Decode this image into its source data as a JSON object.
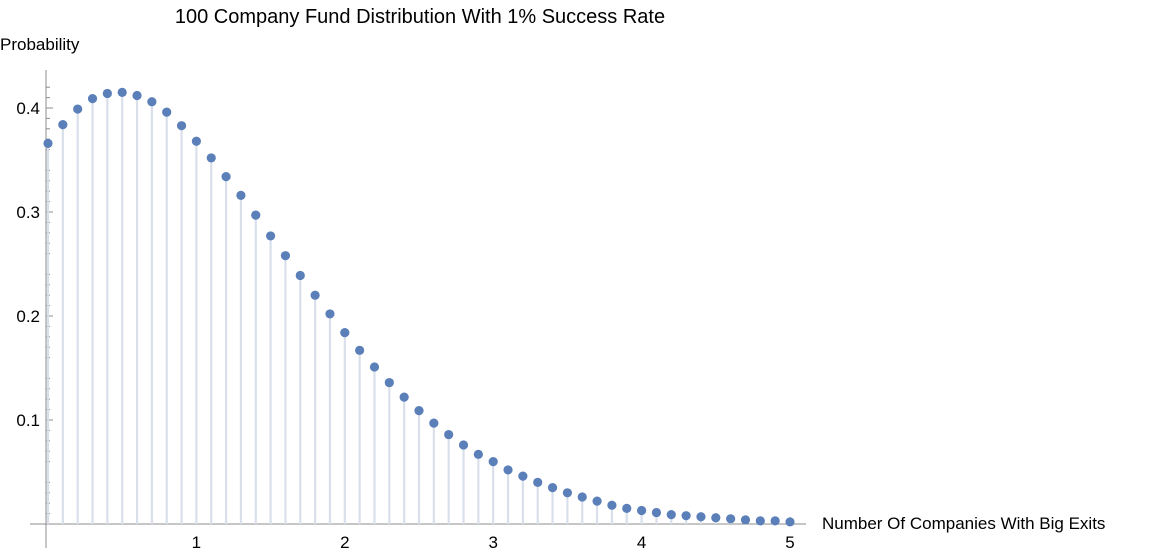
{
  "chart_data": {
    "type": "scatter",
    "title": "100 Company Fund Distribution With 1% Success Rate",
    "xlabel": "Number Of Companies With Big Exits",
    "ylabel": "Probability",
    "xlim": [
      0,
      5
    ],
    "ylim": [
      0,
      0.43
    ],
    "x_ticks": [
      "1",
      "2",
      "3",
      "4",
      "5"
    ],
    "y_ticks": [
      "0.1",
      "0.2",
      "0.3",
      "0.4"
    ],
    "grid": false,
    "series_color": "#5b7fb9",
    "stem_color": "#d9e0eb",
    "x": [
      0.0,
      0.1,
      0.2,
      0.3,
      0.4,
      0.5,
      0.6,
      0.7,
      0.8,
      0.9,
      1.0,
      1.1,
      1.2,
      1.3,
      1.4,
      1.5,
      1.6,
      1.7,
      1.8,
      1.9,
      2.0,
      2.1,
      2.2,
      2.3,
      2.4,
      2.5,
      2.6,
      2.7,
      2.8,
      2.9,
      3.0,
      3.1,
      3.2,
      3.3,
      3.4,
      3.5,
      3.6,
      3.7,
      3.8,
      3.9,
      4.0,
      4.1,
      4.2,
      4.3,
      4.4,
      4.5,
      4.6,
      4.7,
      4.8,
      4.9,
      5.0
    ],
    "y": [
      0.366,
      0.384,
      0.399,
      0.409,
      0.414,
      0.415,
      0.412,
      0.406,
      0.396,
      0.383,
      0.368,
      0.352,
      0.334,
      0.316,
      0.297,
      0.277,
      0.258,
      0.239,
      0.22,
      0.202,
      0.184,
      0.167,
      0.151,
      0.136,
      0.122,
      0.109,
      0.097,
      0.086,
      0.076,
      0.067,
      0.06,
      0.052,
      0.046,
      0.04,
      0.035,
      0.03,
      0.026,
      0.022,
      0.018,
      0.015,
      0.013,
      0.011,
      0.009,
      0.008,
      0.007,
      0.006,
      0.005,
      0.004,
      0.003,
      0.003,
      0.002
    ]
  }
}
